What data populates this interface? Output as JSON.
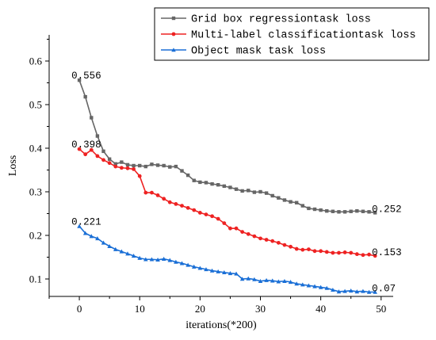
{
  "chart_data": {
    "type": "line",
    "title": "",
    "xlabel": "iterations(*200)",
    "ylabel": "Loss",
    "xlim": [
      -5,
      52
    ],
    "ylim": [
      0.06,
      0.66
    ],
    "xticks": [
      0,
      10,
      20,
      30,
      40,
      50
    ],
    "yticks": [
      0.1,
      0.2,
      0.3,
      0.4,
      0.5,
      0.6
    ],
    "xtick_labels": [
      "0",
      "10",
      "20",
      "30",
      "40",
      "50"
    ],
    "ytick_labels": [
      "0.1",
      "0.2",
      "0.3",
      "0.4",
      "0.5",
      "0.6"
    ],
    "grid": false,
    "legend_position": "top-right",
    "x": [
      0,
      1,
      2,
      3,
      4,
      5,
      6,
      7,
      8,
      9,
      10,
      11,
      12,
      13,
      14,
      15,
      16,
      17,
      18,
      19,
      20,
      21,
      22,
      23,
      24,
      25,
      26,
      27,
      28,
      29,
      30,
      31,
      32,
      33,
      34,
      35,
      36,
      37,
      38,
      39,
      40,
      41,
      42,
      43,
      44,
      45,
      46,
      47,
      48,
      49
    ],
    "series": [
      {
        "name": "Grid box regressiontask loss",
        "color": "#666666",
        "marker": "square",
        "values": [
          0.556,
          0.518,
          0.47,
          0.428,
          0.393,
          0.375,
          0.364,
          0.368,
          0.362,
          0.36,
          0.36,
          0.358,
          0.363,
          0.361,
          0.36,
          0.357,
          0.358,
          0.348,
          0.338,
          0.326,
          0.322,
          0.321,
          0.318,
          0.316,
          0.313,
          0.31,
          0.306,
          0.302,
          0.303,
          0.299,
          0.3,
          0.297,
          0.291,
          0.286,
          0.281,
          0.277,
          0.275,
          0.268,
          0.262,
          0.26,
          0.258,
          0.256,
          0.255,
          0.254,
          0.254,
          0.255,
          0.256,
          0.255,
          0.254,
          0.252
        ],
        "end_label": "0.252",
        "start_label": "0.556"
      },
      {
        "name": "Multi-label classificationtask loss",
        "color": "#ee2222",
        "marker": "circle",
        "values": [
          0.398,
          0.386,
          0.396,
          0.382,
          0.373,
          0.366,
          0.358,
          0.355,
          0.354,
          0.352,
          0.336,
          0.298,
          0.298,
          0.292,
          0.284,
          0.276,
          0.272,
          0.268,
          0.263,
          0.258,
          0.252,
          0.248,
          0.244,
          0.238,
          0.228,
          0.216,
          0.216,
          0.208,
          0.203,
          0.198,
          0.193,
          0.19,
          0.187,
          0.183,
          0.178,
          0.174,
          0.169,
          0.167,
          0.168,
          0.164,
          0.164,
          0.162,
          0.16,
          0.16,
          0.161,
          0.16,
          0.157,
          0.155,
          0.156,
          0.153
        ],
        "end_label": "0.153",
        "start_label": "0.398"
      },
      {
        "name": "Object mask task loss",
        "color": "#1a6fd6",
        "marker": "triangle",
        "values": [
          0.221,
          0.205,
          0.198,
          0.193,
          0.183,
          0.175,
          0.168,
          0.163,
          0.158,
          0.153,
          0.148,
          0.145,
          0.145,
          0.144,
          0.146,
          0.143,
          0.139,
          0.136,
          0.132,
          0.128,
          0.125,
          0.122,
          0.119,
          0.117,
          0.115,
          0.113,
          0.112,
          0.1,
          0.101,
          0.099,
          0.095,
          0.097,
          0.096,
          0.094,
          0.095,
          0.093,
          0.089,
          0.087,
          0.085,
          0.083,
          0.081,
          0.079,
          0.075,
          0.071,
          0.072,
          0.073,
          0.071,
          0.072,
          0.07,
          0.07
        ],
        "end_label": "0.07",
        "start_label": "0.221"
      }
    ]
  }
}
